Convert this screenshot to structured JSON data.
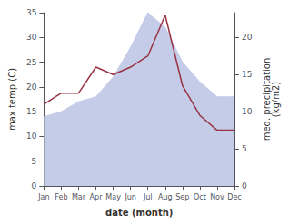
{
  "chart_data": {
    "type": "line",
    "categories": [
      "Jan",
      "Feb",
      "Mar",
      "Apr",
      "May",
      "Jun",
      "Jul",
      "Aug",
      "Sep",
      "Oct",
      "Nov",
      "Dec"
    ],
    "series": [
      {
        "type": "area",
        "color": "#c5cce8",
        "values": [
          14.0,
          15.0,
          17.0,
          18.0,
          22.0,
          28.0,
          35.0,
          32.0,
          25.0,
          21.0,
          18.0,
          18.0
        ]
      },
      {
        "type": "line",
        "color": "#993344",
        "axis": "y2",
        "values": [
          11.0,
          12.5,
          12.5,
          16.0,
          15.0,
          16.0,
          17.5,
          23.0,
          13.5,
          9.5,
          7.5,
          7.5
        ]
      }
    ],
    "xlabel": "date (month)",
    "ylabel": "max temp (C)",
    "y2label": "med. precipitation\n(kg/m2)",
    "ylim": [
      0,
      35
    ],
    "yticks": [
      0,
      5,
      10,
      15,
      20,
      25,
      30,
      35
    ],
    "y2lim": [
      0,
      23.33
    ],
    "y2ticks": [
      0,
      5,
      10,
      15,
      20
    ],
    "grid": false
  }
}
